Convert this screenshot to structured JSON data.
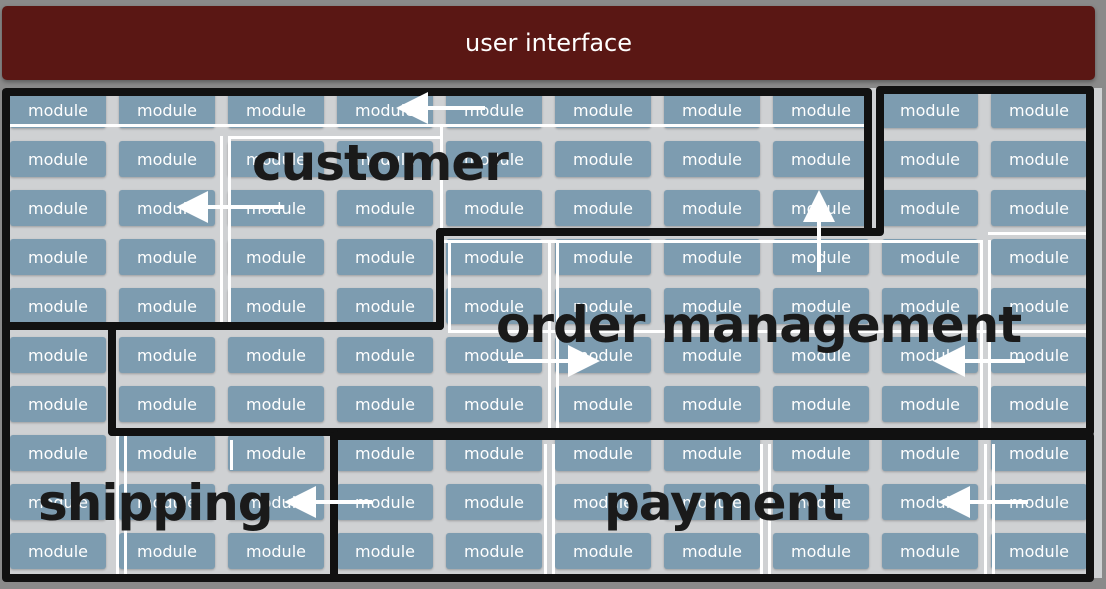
{
  "ui_label": "user interface",
  "module_label": "module",
  "regions": {
    "customer": "customer",
    "order_management": "order management",
    "shipping": "shipping",
    "payment": "payment"
  },
  "colors": {
    "ui_bar": "#5a1714",
    "module": "#7d9cb0",
    "region_border": "#111111",
    "label": "#1a1a1a"
  }
}
